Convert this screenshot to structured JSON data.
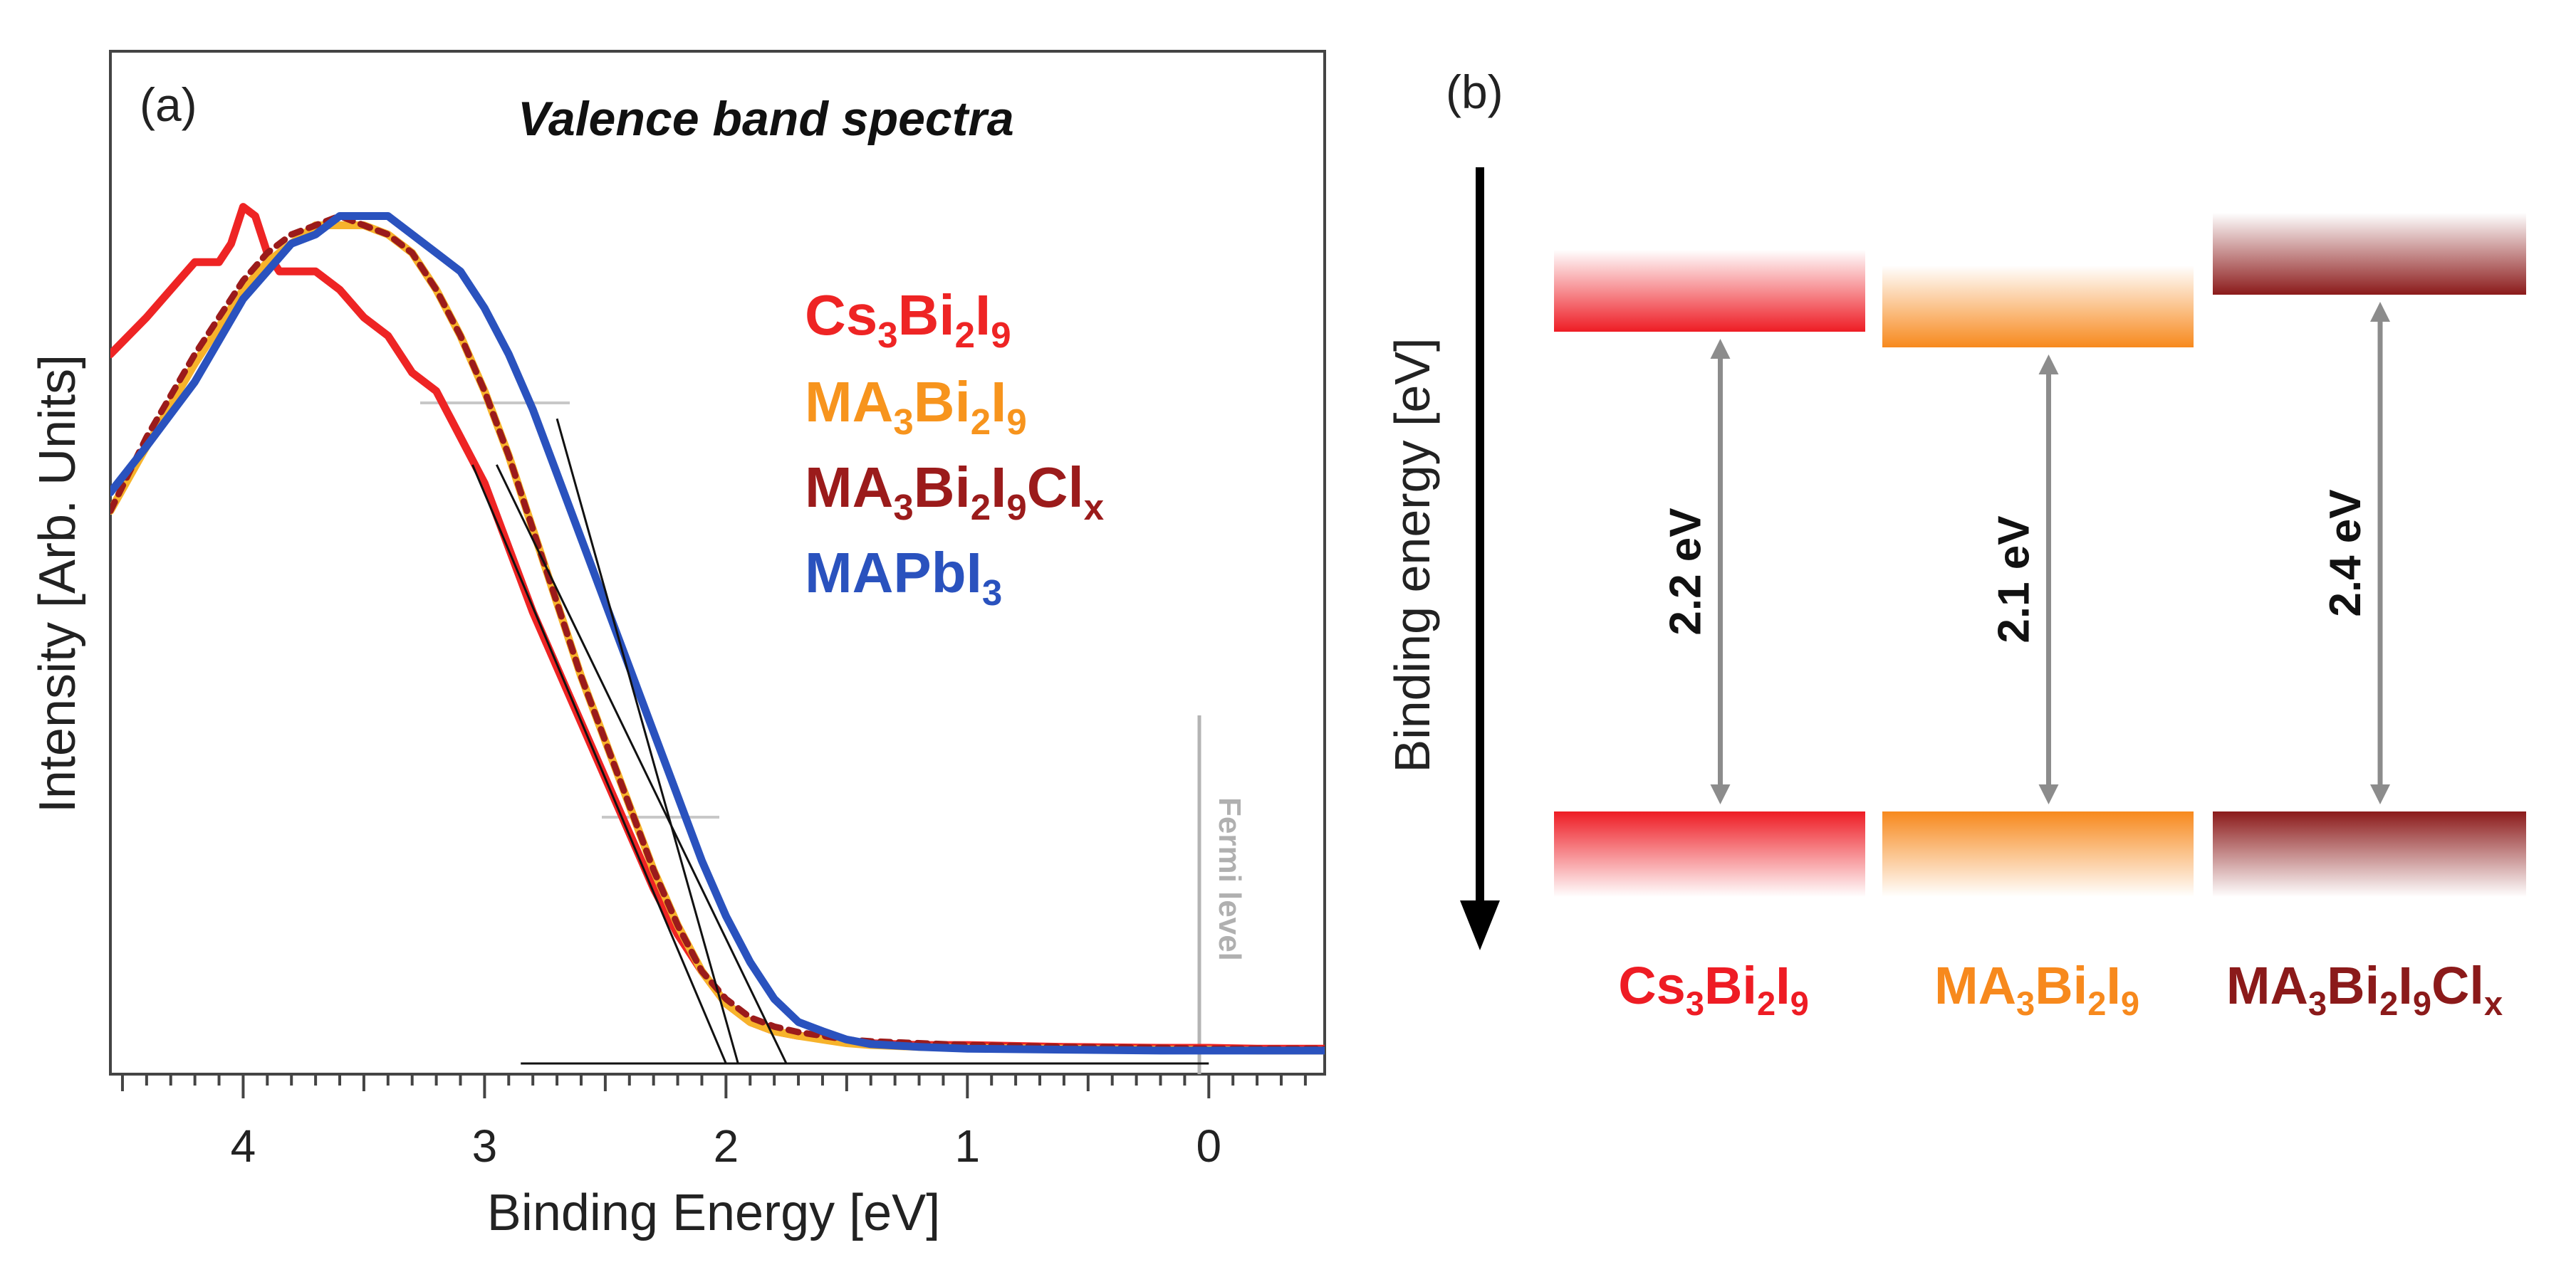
{
  "panel_a": {
    "label": "(a)",
    "title": "Valence band spectra",
    "fermi_label": "Fermi level",
    "legend": [
      {
        "base": "Cs",
        "parts": [
          [
            "Cs",
            ""
          ],
          [
            "3",
            "sub"
          ],
          [
            "Bi",
            ""
          ],
          [
            "2",
            "sub"
          ],
          [
            "I",
            ""
          ],
          [
            "9",
            "sub"
          ]
        ],
        "color": "#ee2424"
      },
      {
        "base": "MA",
        "parts": [
          [
            "MA",
            ""
          ],
          [
            "3",
            "sub"
          ],
          [
            "Bi",
            ""
          ],
          [
            "2",
            "sub"
          ],
          [
            "I",
            ""
          ],
          [
            "9",
            "sub"
          ]
        ],
        "color": "#f7941d"
      },
      {
        "base": "MA",
        "parts": [
          [
            "MA",
            ""
          ],
          [
            "3",
            "sub"
          ],
          [
            "Bi",
            ""
          ],
          [
            "2",
            "sub"
          ],
          [
            "I",
            ""
          ],
          [
            "9",
            "sub"
          ],
          [
            "Cl",
            ""
          ],
          [
            "x",
            "sub"
          ]
        ],
        "color": "#9b1b1b"
      },
      {
        "base": "MA",
        "parts": [
          [
            "MAPbI",
            ""
          ],
          [
            "3",
            "sub"
          ]
        ],
        "color": "#2a52be"
      }
    ]
  },
  "panel_b": {
    "label": "(b)",
    "axis_label": "Binding energy [eV]",
    "materials": [
      {
        "name_parts": [
          [
            "Cs",
            ""
          ],
          [
            "3",
            "sub"
          ],
          [
            "Bi",
            ""
          ],
          [
            "2",
            "sub"
          ],
          [
            "I",
            ""
          ],
          [
            "9",
            "sub"
          ]
        ],
        "gap": "2.2 eV",
        "gap_value": 2.2,
        "color": "#ee1c24"
      },
      {
        "name_parts": [
          [
            "MA",
            ""
          ],
          [
            "3",
            "sub"
          ],
          [
            "Bi",
            ""
          ],
          [
            "2",
            "sub"
          ],
          [
            "I",
            ""
          ],
          [
            "9",
            "sub"
          ]
        ],
        "gap": "2.1 eV",
        "gap_value": 2.1,
        "color": "#f7891d"
      },
      {
        "name_parts": [
          [
            "MA",
            ""
          ],
          [
            "3",
            "sub"
          ],
          [
            "Bi",
            ""
          ],
          [
            "2",
            "sub"
          ],
          [
            "I",
            ""
          ],
          [
            "9",
            "sub"
          ],
          [
            "Cl",
            ""
          ],
          [
            "x",
            "sub"
          ]
        ],
        "gap": "2.4 eV",
        "gap_value": 2.4,
        "color": "#8b1a1a"
      }
    ]
  },
  "chart_data": [
    {
      "type": "line",
      "title": "Valence band spectra",
      "xlabel": "Binding Energy [eV]",
      "ylabel": "Intensity [Arb. Units]",
      "xlim": [
        4.55,
        -0.48
      ],
      "ylim": [
        0,
        1.0
      ],
      "x_ticks": [
        4,
        3,
        2,
        1,
        0
      ],
      "x_tick_labels": [
        "4",
        "3",
        "2",
        "1",
        "0"
      ],
      "series": [
        {
          "name": "Cs3Bi2I9",
          "color": "#ee2424",
          "style": "solid",
          "x": [
            4.55,
            4.4,
            4.3,
            4.2,
            4.1,
            4.05,
            4.0,
            3.95,
            3.9,
            3.85,
            3.8,
            3.7,
            3.6,
            3.5,
            3.4,
            3.3,
            3.2,
            3.1,
            3.0,
            2.9,
            2.8,
            2.7,
            2.6,
            2.5,
            2.4,
            2.3,
            2.2,
            2.1,
            2.0,
            1.9,
            1.8,
            1.7,
            1.6,
            1.5,
            1.4,
            1.2,
            1.0,
            0.6,
            0.2,
            0.0,
            -0.2,
            -0.48
          ],
          "y": [
            0.77,
            0.81,
            0.84,
            0.87,
            0.87,
            0.89,
            0.93,
            0.92,
            0.88,
            0.86,
            0.86,
            0.86,
            0.84,
            0.81,
            0.79,
            0.75,
            0.73,
            0.68,
            0.63,
            0.56,
            0.49,
            0.43,
            0.37,
            0.31,
            0.25,
            0.19,
            0.14,
            0.1,
            0.065,
            0.045,
            0.035,
            0.03,
            0.028,
            0.024,
            0.022,
            0.02,
            0.02,
            0.018,
            0.017,
            0.017,
            0.016,
            0.016
          ]
        },
        {
          "name": "MA3Bi2I9",
          "color": "#f7b32b",
          "style": "solid",
          "x": [
            4.55,
            4.4,
            4.2,
            4.0,
            3.9,
            3.8,
            3.7,
            3.6,
            3.5,
            3.4,
            3.3,
            3.2,
            3.1,
            3.0,
            2.9,
            2.8,
            2.7,
            2.6,
            2.5,
            2.4,
            2.3,
            2.2,
            2.1,
            2.0,
            1.9,
            1.8,
            1.7,
            1.6,
            1.5,
            1.4,
            1.2,
            1.0,
            0.6,
            0.2,
            0.0,
            -0.2,
            -0.48
          ],
          "y": [
            0.6,
            0.67,
            0.76,
            0.84,
            0.87,
            0.89,
            0.91,
            0.91,
            0.91,
            0.9,
            0.88,
            0.84,
            0.79,
            0.73,
            0.66,
            0.58,
            0.5,
            0.42,
            0.35,
            0.28,
            0.21,
            0.15,
            0.1,
            0.065,
            0.045,
            0.035,
            0.03,
            0.026,
            0.022,
            0.02,
            0.018,
            0.017,
            0.016,
            0.015,
            0.015,
            0.014,
            0.014
          ]
        },
        {
          "name": "MA3Bi2I9Clx",
          "color": "#9b1b1b",
          "style": "dashed",
          "x": [
            4.55,
            4.4,
            4.2,
            4.0,
            3.9,
            3.8,
            3.7,
            3.6,
            3.5,
            3.4,
            3.3,
            3.2,
            3.1,
            3.0,
            2.9,
            2.8,
            2.7,
            2.6,
            2.5,
            2.4,
            2.3,
            2.2,
            2.1,
            2.0,
            1.9,
            1.8,
            1.7,
            1.6,
            1.5,
            1.4,
            1.2,
            1.0,
            0.6,
            0.2,
            0.0,
            -0.2,
            -0.48
          ],
          "y": [
            0.6,
            0.68,
            0.77,
            0.85,
            0.88,
            0.9,
            0.91,
            0.92,
            0.91,
            0.9,
            0.88,
            0.84,
            0.79,
            0.73,
            0.66,
            0.58,
            0.5,
            0.42,
            0.35,
            0.28,
            0.21,
            0.15,
            0.1,
            0.07,
            0.05,
            0.04,
            0.034,
            0.03,
            0.026,
            0.024,
            0.022,
            0.02,
            0.018,
            0.017,
            0.016,
            0.016,
            0.016
          ]
        },
        {
          "name": "MAPbI3",
          "color": "#2a52be",
          "style": "solid",
          "x": [
            4.55,
            4.4,
            4.2,
            4.0,
            3.9,
            3.8,
            3.7,
            3.6,
            3.5,
            3.4,
            3.3,
            3.2,
            3.1,
            3.0,
            2.9,
            2.8,
            2.7,
            2.6,
            2.5,
            2.4,
            2.3,
            2.2,
            2.1,
            2.0,
            1.9,
            1.8,
            1.7,
            1.6,
            1.5,
            1.4,
            1.2,
            1.0,
            0.6,
            0.2,
            0.0,
            -0.2,
            -0.48
          ],
          "y": [
            0.62,
            0.67,
            0.74,
            0.83,
            0.86,
            0.89,
            0.9,
            0.92,
            0.92,
            0.92,
            0.9,
            0.88,
            0.86,
            0.82,
            0.77,
            0.71,
            0.64,
            0.57,
            0.5,
            0.43,
            0.36,
            0.29,
            0.22,
            0.16,
            0.11,
            0.07,
            0.045,
            0.035,
            0.026,
            0.021,
            0.018,
            0.016,
            0.015,
            0.014,
            0.014,
            0.014,
            0.014
          ]
        }
      ],
      "tangent_lines": [
        {
          "x": [
            3.05,
            2.0
          ],
          "y": [
            0.65,
            0.0
          ]
        },
        {
          "x": [
            2.95,
            1.75
          ],
          "y": [
            0.65,
            0.0
          ]
        },
        {
          "x": [
            2.7,
            1.95
          ],
          "y": [
            0.7,
            0.0
          ]
        },
        {
          "x": [
            2.85,
            0.0
          ],
          "y": [
            0.0,
            0.0
          ]
        }
      ],
      "annotations": [
        "Fermi level"
      ]
    },
    {
      "type": "diagram",
      "title": "",
      "ylabel": "Binding energy [eV]",
      "categories": [
        "Cs3Bi2I9",
        "MA3Bi2I9",
        "MA3Bi2I9Clx"
      ],
      "values": [
        2.2,
        2.1,
        2.4
      ],
      "value_labels": [
        "2.2 eV",
        "2.1 eV",
        "2.4 eV"
      ]
    }
  ]
}
